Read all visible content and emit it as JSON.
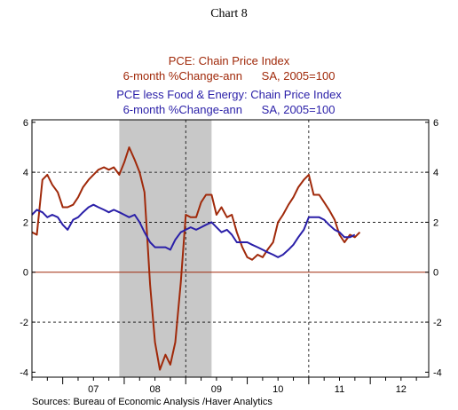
{
  "page_title": "Chart 8",
  "source": "Sources:  Bureau of Economic Analysis /Haver Analytics",
  "colors": {
    "pce": "#a0290a",
    "core": "#2a1fa8",
    "recession": "#c8c8c8",
    "zero_line": "#a0290a"
  },
  "chart_data": {
    "type": "line",
    "x_unit": "year (decimal)",
    "xlim": [
      2006.5,
      2012.95
    ],
    "ylim": [
      -4.2,
      6.1
    ],
    "yticks": [
      -4,
      -2,
      0,
      2,
      4,
      6
    ],
    "ytick_labels": [
      "-4",
      "-2",
      "0",
      "2",
      "4",
      "6"
    ],
    "xtick_labels": [
      {
        "label": "07",
        "at": 2007.5
      },
      {
        "label": "08",
        "at": 2008.5
      },
      {
        "label": "09",
        "at": 2009.5
      },
      {
        "label": "10",
        "at": 2010.5
      },
      {
        "label": "11",
        "at": 2011.5
      },
      {
        "label": "12",
        "at": 2012.5
      }
    ],
    "grid": "dashed",
    "vertical_gridlines_at": [
      2009.0,
      2011.0
    ],
    "recession": {
      "start": 2007.92,
      "end": 2009.42
    },
    "series": [
      {
        "key": "pce",
        "name": "PCE: Chain Price Index",
        "subtitle": "6-month %Change-ann      SA, 2005=100",
        "color": "#a0290a",
        "values": [
          [
            2006.5,
            1.6
          ],
          [
            2006.58,
            1.5
          ],
          [
            2006.67,
            3.7
          ],
          [
            2006.75,
            3.9
          ],
          [
            2006.83,
            3.5
          ],
          [
            2006.92,
            3.2
          ],
          [
            2007.0,
            2.6
          ],
          [
            2007.08,
            2.6
          ],
          [
            2007.17,
            2.7
          ],
          [
            2007.25,
            3.0
          ],
          [
            2007.33,
            3.4
          ],
          [
            2007.42,
            3.7
          ],
          [
            2007.5,
            3.9
          ],
          [
            2007.58,
            4.1
          ],
          [
            2007.67,
            4.2
          ],
          [
            2007.75,
            4.1
          ],
          [
            2007.83,
            4.2
          ],
          [
            2007.92,
            3.9
          ],
          [
            2008.0,
            4.4
          ],
          [
            2008.08,
            5.0
          ],
          [
            2008.17,
            4.5
          ],
          [
            2008.25,
            4.0
          ],
          [
            2008.33,
            3.2
          ],
          [
            2008.42,
            -0.5
          ],
          [
            2008.5,
            -2.8
          ],
          [
            2008.58,
            -3.9
          ],
          [
            2008.67,
            -3.3
          ],
          [
            2008.75,
            -3.7
          ],
          [
            2008.83,
            -2.8
          ],
          [
            2008.92,
            -0.4
          ],
          [
            2009.0,
            2.3
          ],
          [
            2009.08,
            2.2
          ],
          [
            2009.17,
            2.2
          ],
          [
            2009.25,
            2.8
          ],
          [
            2009.33,
            3.1
          ],
          [
            2009.42,
            3.1
          ],
          [
            2009.5,
            2.3
          ],
          [
            2009.58,
            2.6
          ],
          [
            2009.67,
            2.2
          ],
          [
            2009.75,
            2.3
          ],
          [
            2009.83,
            1.6
          ],
          [
            2009.92,
            1.0
          ],
          [
            2010.0,
            0.6
          ],
          [
            2010.08,
            0.5
          ],
          [
            2010.17,
            0.7
          ],
          [
            2010.25,
            0.6
          ],
          [
            2010.33,
            0.9
          ],
          [
            2010.42,
            1.2
          ],
          [
            2010.5,
            2.0
          ],
          [
            2010.58,
            2.3
          ],
          [
            2010.67,
            2.7
          ],
          [
            2010.75,
            3.0
          ],
          [
            2010.83,
            3.4
          ],
          [
            2010.92,
            3.7
          ],
          [
            2011.0,
            3.9
          ],
          [
            2011.08,
            3.1
          ],
          [
            2011.17,
            3.1
          ],
          [
            2011.25,
            2.8
          ],
          [
            2011.33,
            2.5
          ],
          [
            2011.42,
            2.1
          ],
          [
            2011.5,
            1.5
          ],
          [
            2011.58,
            1.2
          ],
          [
            2011.67,
            1.5
          ],
          [
            2011.75,
            1.4
          ],
          [
            2011.83,
            1.6
          ]
        ]
      },
      {
        "key": "core",
        "name": "PCE less Food & Energy: Chain Price Index",
        "subtitle": "6-month %Change-ann      SA, 2005=100",
        "color": "#2a1fa8",
        "values": [
          [
            2006.5,
            2.3
          ],
          [
            2006.58,
            2.5
          ],
          [
            2006.67,
            2.4
          ],
          [
            2006.75,
            2.2
          ],
          [
            2006.83,
            2.3
          ],
          [
            2006.92,
            2.2
          ],
          [
            2007.0,
            1.9
          ],
          [
            2007.08,
            1.7
          ],
          [
            2007.17,
            2.1
          ],
          [
            2007.25,
            2.2
          ],
          [
            2007.33,
            2.4
          ],
          [
            2007.42,
            2.6
          ],
          [
            2007.5,
            2.7
          ],
          [
            2007.58,
            2.6
          ],
          [
            2007.67,
            2.5
          ],
          [
            2007.75,
            2.4
          ],
          [
            2007.83,
            2.5
          ],
          [
            2007.92,
            2.4
          ],
          [
            2008.0,
            2.3
          ],
          [
            2008.08,
            2.2
          ],
          [
            2008.17,
            2.3
          ],
          [
            2008.25,
            2.0
          ],
          [
            2008.33,
            1.6
          ],
          [
            2008.42,
            1.2
          ],
          [
            2008.5,
            1.0
          ],
          [
            2008.58,
            1.0
          ],
          [
            2008.67,
            1.0
          ],
          [
            2008.75,
            0.9
          ],
          [
            2008.83,
            1.3
          ],
          [
            2008.92,
            1.6
          ],
          [
            2009.0,
            1.7
          ],
          [
            2009.08,
            1.8
          ],
          [
            2009.17,
            1.7
          ],
          [
            2009.25,
            1.8
          ],
          [
            2009.33,
            1.9
          ],
          [
            2009.42,
            2.0
          ],
          [
            2009.5,
            1.8
          ],
          [
            2009.58,
            1.6
          ],
          [
            2009.67,
            1.7
          ],
          [
            2009.75,
            1.5
          ],
          [
            2009.83,
            1.2
          ],
          [
            2009.92,
            1.2
          ],
          [
            2010.0,
            1.2
          ],
          [
            2010.08,
            1.1
          ],
          [
            2010.17,
            1.0
          ],
          [
            2010.25,
            0.9
          ],
          [
            2010.33,
            0.8
          ],
          [
            2010.42,
            0.7
          ],
          [
            2010.5,
            0.6
          ],
          [
            2010.58,
            0.7
          ],
          [
            2010.67,
            0.9
          ],
          [
            2010.75,
            1.1
          ],
          [
            2010.83,
            1.4
          ],
          [
            2010.92,
            1.7
          ],
          [
            2011.0,
            2.2
          ],
          [
            2011.08,
            2.2
          ],
          [
            2011.17,
            2.2
          ],
          [
            2011.25,
            2.1
          ],
          [
            2011.33,
            1.9
          ],
          [
            2011.42,
            1.7
          ],
          [
            2011.5,
            1.6
          ],
          [
            2011.58,
            1.4
          ],
          [
            2011.67,
            1.4
          ],
          [
            2011.75,
            1.5
          ]
        ]
      }
    ]
  }
}
